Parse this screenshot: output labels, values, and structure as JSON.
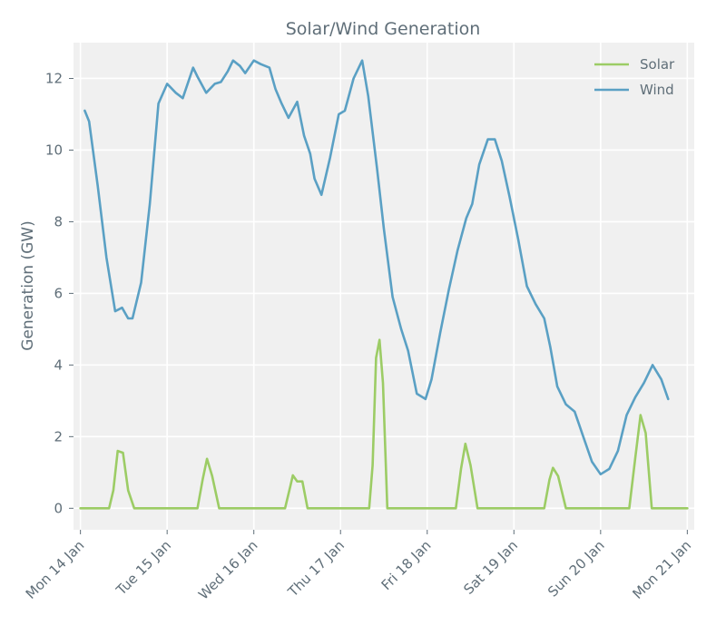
{
  "chart_data": {
    "type": "line",
    "title": "Solar/Wind Generation",
    "xlabel": "",
    "ylabel": "Generation (GW)",
    "ylim": [
      -0.6,
      13.0
    ],
    "yticks": [
      0,
      2,
      4,
      6,
      8,
      10,
      12
    ],
    "xlim": [
      -0.08,
      7.08
    ],
    "xticks": [
      {
        "value": 0,
        "label": "Mon 14 Jan"
      },
      {
        "value": 1,
        "label": "Tue 15 Jan"
      },
      {
        "value": 2,
        "label": "Wed 16 Jan"
      },
      {
        "value": 3,
        "label": "Thu 17 Jan"
      },
      {
        "value": 4,
        "label": "Fri 18 Jan"
      },
      {
        "value": 5,
        "label": "Sat 19 Jan"
      },
      {
        "value": 6,
        "label": "Sun 20 Jan"
      },
      {
        "value": 7,
        "label": "Mon 21 Jan"
      }
    ],
    "grid": true,
    "legend_position": "top-right",
    "series": [
      {
        "name": "Solar",
        "color": "#9ccc65",
        "points": [
          [
            0.0,
            0.0
          ],
          [
            0.33,
            0.0
          ],
          [
            0.38,
            0.5
          ],
          [
            0.43,
            1.6
          ],
          [
            0.49,
            1.55
          ],
          [
            0.55,
            0.5
          ],
          [
            0.62,
            0.0
          ],
          [
            1.0,
            0.0
          ],
          [
            1.35,
            0.0
          ],
          [
            1.41,
            0.8
          ],
          [
            1.46,
            1.38
          ],
          [
            1.52,
            0.9
          ],
          [
            1.6,
            0.0
          ],
          [
            2.0,
            0.0
          ],
          [
            2.36,
            0.0
          ],
          [
            2.42,
            0.6
          ],
          [
            2.45,
            0.92
          ],
          [
            2.5,
            0.75
          ],
          [
            2.56,
            0.75
          ],
          [
            2.62,
            0.0
          ],
          [
            3.0,
            0.0
          ],
          [
            3.33,
            0.0
          ],
          [
            3.37,
            1.2
          ],
          [
            3.41,
            4.2
          ],
          [
            3.45,
            4.7
          ],
          [
            3.49,
            3.5
          ],
          [
            3.54,
            0.0
          ],
          [
            4.0,
            0.0
          ],
          [
            4.33,
            0.0
          ],
          [
            4.39,
            1.1
          ],
          [
            4.44,
            1.8
          ],
          [
            4.5,
            1.2
          ],
          [
            4.58,
            0.0
          ],
          [
            5.0,
            0.0
          ],
          [
            5.35,
            0.0
          ],
          [
            5.41,
            0.8
          ],
          [
            5.45,
            1.13
          ],
          [
            5.51,
            0.9
          ],
          [
            5.6,
            0.0
          ],
          [
            6.0,
            0.0
          ],
          [
            6.33,
            0.0
          ],
          [
            6.4,
            1.4
          ],
          [
            6.46,
            2.6
          ],
          [
            6.52,
            2.1
          ],
          [
            6.59,
            0.0
          ],
          [
            7.0,
            0.0
          ]
        ]
      },
      {
        "name": "Wind",
        "color": "#5aa0c4",
        "points": [
          [
            0.05,
            11.1
          ],
          [
            0.1,
            10.8
          ],
          [
            0.2,
            9.0
          ],
          [
            0.3,
            7.0
          ],
          [
            0.4,
            5.5
          ],
          [
            0.48,
            5.6
          ],
          [
            0.55,
            5.3
          ],
          [
            0.6,
            5.3
          ],
          [
            0.7,
            6.3
          ],
          [
            0.8,
            8.5
          ],
          [
            0.9,
            11.3
          ],
          [
            1.0,
            11.85
          ],
          [
            1.1,
            11.6
          ],
          [
            1.18,
            11.45
          ],
          [
            1.3,
            12.3
          ],
          [
            1.35,
            12.05
          ],
          [
            1.45,
            11.6
          ],
          [
            1.55,
            11.85
          ],
          [
            1.62,
            11.9
          ],
          [
            1.7,
            12.2
          ],
          [
            1.76,
            12.5
          ],
          [
            1.84,
            12.35
          ],
          [
            1.9,
            12.15
          ],
          [
            2.0,
            12.5
          ],
          [
            2.08,
            12.4
          ],
          [
            2.18,
            12.3
          ],
          [
            2.25,
            11.7
          ],
          [
            2.32,
            11.3
          ],
          [
            2.4,
            10.9
          ],
          [
            2.5,
            11.35
          ],
          [
            2.58,
            10.4
          ],
          [
            2.65,
            9.9
          ],
          [
            2.7,
            9.2
          ],
          [
            2.78,
            8.75
          ],
          [
            2.88,
            9.8
          ],
          [
            2.98,
            11.0
          ],
          [
            3.05,
            11.1
          ],
          [
            3.15,
            12.0
          ],
          [
            3.25,
            12.5
          ],
          [
            3.32,
            11.5
          ],
          [
            3.42,
            9.5
          ],
          [
            3.5,
            7.8
          ],
          [
            3.6,
            5.9
          ],
          [
            3.7,
            5.0
          ],
          [
            3.78,
            4.4
          ],
          [
            3.88,
            3.2
          ],
          [
            3.98,
            3.05
          ],
          [
            4.05,
            3.6
          ],
          [
            4.15,
            4.9
          ],
          [
            4.25,
            6.1
          ],
          [
            4.35,
            7.2
          ],
          [
            4.45,
            8.1
          ],
          [
            4.52,
            8.5
          ],
          [
            4.6,
            9.6
          ],
          [
            4.7,
            10.3
          ],
          [
            4.78,
            10.3
          ],
          [
            4.86,
            9.7
          ],
          [
            4.95,
            8.7
          ],
          [
            5.05,
            7.5
          ],
          [
            5.15,
            6.2
          ],
          [
            5.25,
            5.7
          ],
          [
            5.35,
            5.3
          ],
          [
            5.42,
            4.5
          ],
          [
            5.5,
            3.4
          ],
          [
            5.6,
            2.9
          ],
          [
            5.7,
            2.7
          ],
          [
            5.8,
            2.0
          ],
          [
            5.9,
            1.3
          ],
          [
            6.0,
            0.95
          ],
          [
            6.1,
            1.1
          ],
          [
            6.2,
            1.6
          ],
          [
            6.3,
            2.6
          ],
          [
            6.4,
            3.1
          ],
          [
            6.5,
            3.5
          ],
          [
            6.6,
            4.0
          ],
          [
            6.7,
            3.6
          ],
          [
            6.78,
            3.05
          ]
        ]
      }
    ]
  }
}
